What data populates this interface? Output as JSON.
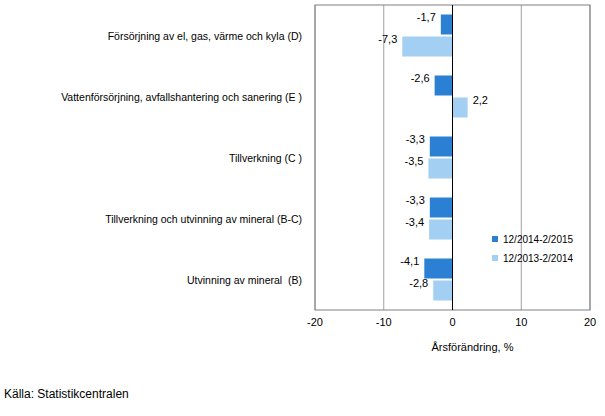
{
  "chart_data": {
    "type": "bar",
    "orientation": "horizontal",
    "categories": [
      "Försörjning av el, gas, värme och kyla (D)",
      "Vattenförsörjning, avfallshantering och sanering (E )",
      "Tillverkning (C )",
      "Tillverkning och utvinning av mineral (B-C)",
      "Utvinning av mineral  (B)"
    ],
    "series": [
      {
        "name": "12/2014-2/2015",
        "color": "#2b80d3",
        "values": [
          -1.7,
          -2.6,
          -3.3,
          -3.3,
          -4.1
        ],
        "value_labels": [
          "-1,7",
          "-2,6",
          "-3,3",
          "-3,3",
          "-4,1"
        ]
      },
      {
        "name": "12/2013-2/2014",
        "color": "#a3cff2",
        "values": [
          -7.3,
          2.2,
          -3.5,
          -3.4,
          -2.8
        ],
        "value_labels": [
          "-7,3",
          "2,2",
          "-3,5",
          "-3,4",
          "-2,8"
        ]
      }
    ],
    "x_label": "Årsförändring, %",
    "xlim": [
      -20,
      20
    ],
    "xticks": [
      -20,
      -10,
      0,
      10,
      20
    ],
    "grid": true,
    "legend": "bottom-right",
    "data_labels": true,
    "source": "Källa: Statistikcentralen"
  }
}
